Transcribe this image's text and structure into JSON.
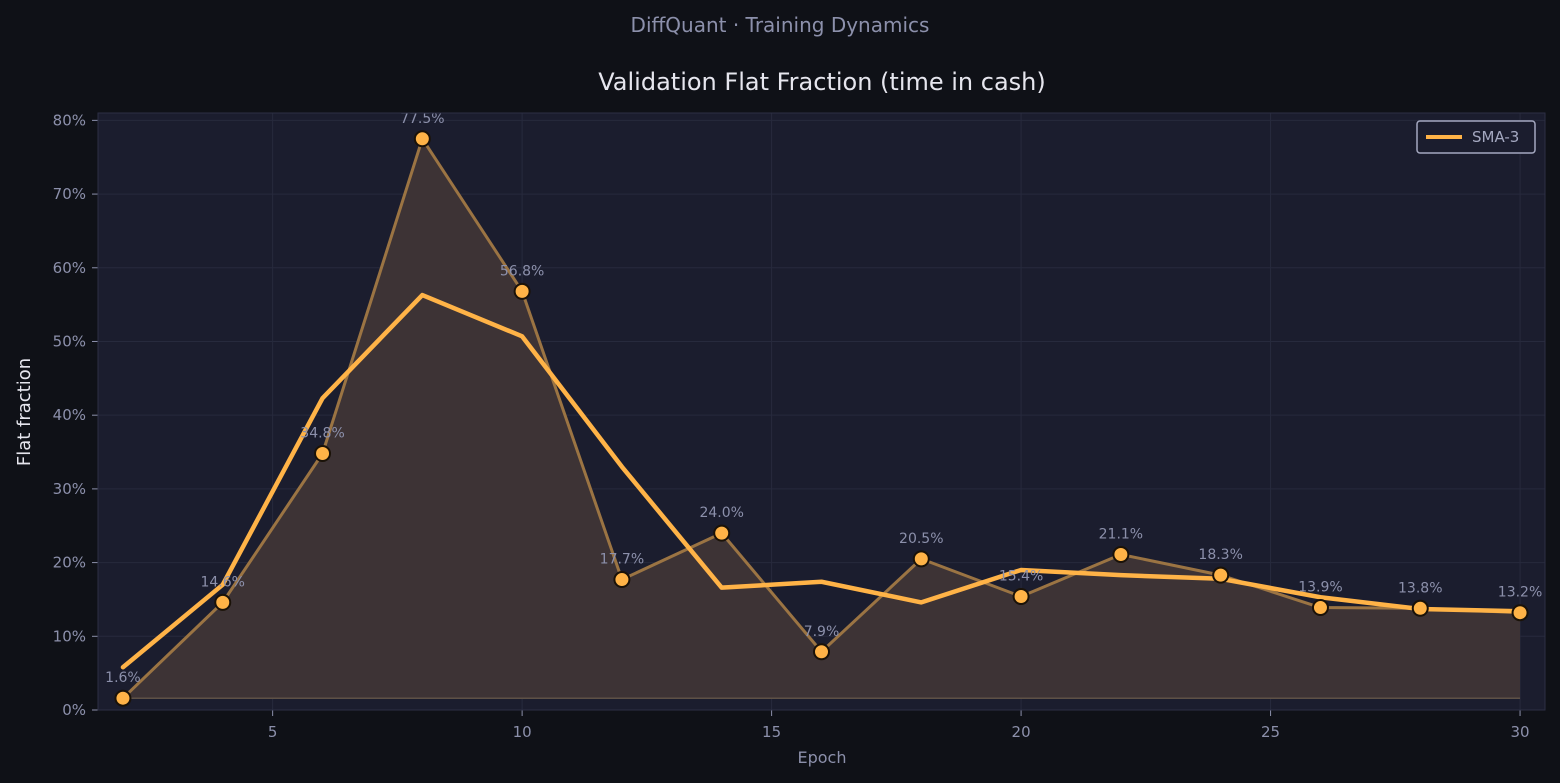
{
  "page": {
    "suptitle": "DiffQuant  ·  Training Dynamics"
  },
  "colors": {
    "background": "#0f1117",
    "plot_background": "#1b1d2e",
    "accent": "#ffb347",
    "grid": "#272a3d",
    "text_muted": "#8c90ab"
  },
  "chart_data": {
    "type": "line",
    "title": "Validation Flat Fraction  (time in cash)",
    "xlabel": "Epoch",
    "ylabel": "Flat fraction",
    "xlim": [
      1.5,
      30.5
    ],
    "ylim": [
      0,
      0.81
    ],
    "xticks": [
      5,
      10,
      15,
      20,
      25,
      30
    ],
    "yticks": [
      0,
      0.1,
      0.2,
      0.3,
      0.4,
      0.5,
      0.6,
      0.7,
      0.8
    ],
    "ytick_labels": [
      "0%",
      "10%",
      "20%",
      "30%",
      "40%",
      "50%",
      "60%",
      "70%",
      "80%"
    ],
    "grid": true,
    "legend": {
      "placement": "top-right",
      "entries": [
        "SMA-3"
      ]
    },
    "x": [
      2,
      4,
      6,
      8,
      10,
      12,
      14,
      16,
      18,
      20,
      22,
      24,
      26,
      28,
      30
    ],
    "series": [
      {
        "name": "",
        "style": "line-markers-area",
        "values": [
          0.016,
          0.146,
          0.348,
          0.775,
          0.568,
          0.177,
          0.24,
          0.079,
          0.205,
          0.154,
          0.211,
          0.183,
          0.139,
          0.138,
          0.132
        ],
        "labels": [
          "1.6%",
          "14.6%",
          "34.8%",
          "77.5%",
          "56.8%",
          "17.7%",
          "24.0%",
          "7.9%",
          "20.5%",
          "15.4%",
          "21.1%",
          "18.3%",
          "13.9%",
          "13.8%",
          "13.2%"
        ]
      },
      {
        "name": "SMA-3",
        "style": "line",
        "values": [
          0.058,
          0.17,
          0.423,
          0.563,
          0.507,
          0.33,
          0.166,
          0.174,
          0.146,
          0.19,
          0.183,
          0.178,
          0.153,
          0.137,
          0.134
        ]
      }
    ]
  }
}
